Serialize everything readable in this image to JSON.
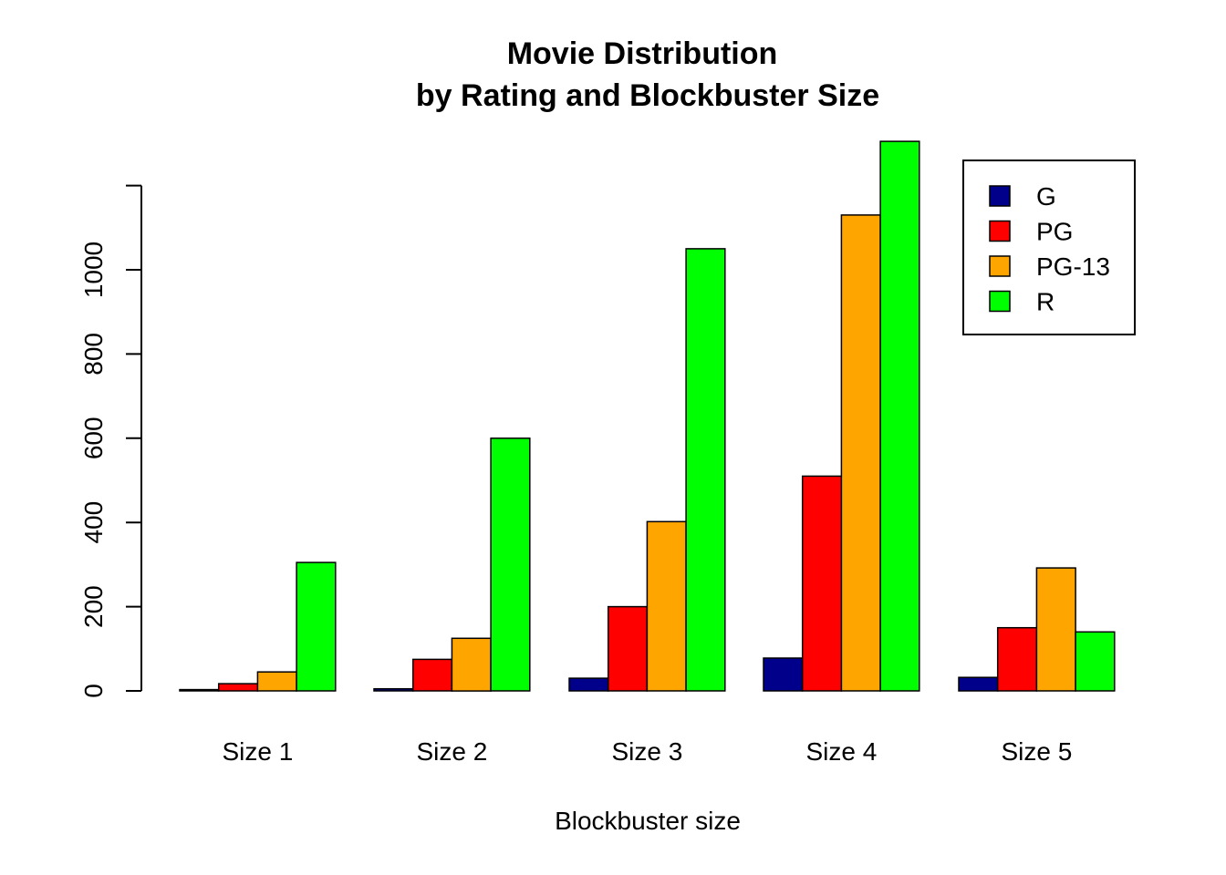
{
  "chart_data": {
    "type": "bar",
    "title": "Movie Distribution",
    "subtitle": "by Rating and Blockbuster Size",
    "xlabel": "Blockbuster size",
    "ylabel": "",
    "categories": [
      "Size 1",
      "Size 2",
      "Size 3",
      "Size 4",
      "Size 5"
    ],
    "series": [
      {
        "name": "G",
        "color": "#00008B",
        "values": [
          3,
          5,
          30,
          78,
          32
        ]
      },
      {
        "name": "PG",
        "color": "#FF0000",
        "values": [
          17,
          75,
          200,
          510,
          150
        ]
      },
      {
        "name": "PG-13",
        "color": "#FFA500",
        "values": [
          45,
          125,
          402,
          1130,
          292
        ]
      },
      {
        "name": "R",
        "color": "#00FF00",
        "values": [
          305,
          600,
          1050,
          1305,
          140
        ]
      }
    ],
    "yticks": [
      0,
      200,
      400,
      600,
      800,
      1000
    ],
    "ylim": [
      0,
      1305
    ],
    "grid": false,
    "legend_position": "top-right"
  }
}
